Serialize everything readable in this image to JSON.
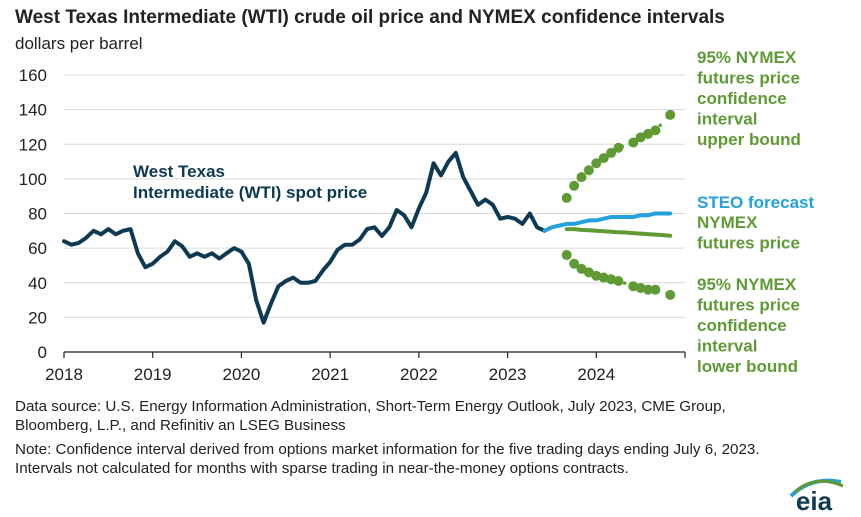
{
  "title": "West Texas Intermediate (WTI) crude oil price and NYMEX confidence intervals",
  "subtitle": "dollars per barrel",
  "source": "Data source: U.S. Energy Information Administration, Short-Term Energy Outlook, July 2023, CME Group, Bloomberg, L.P., and Refinitiv an LSEG Business",
  "note": "Note: Confidence interval derived from options market information for the five trading days ending July 6, 2023. Intervals not calculated for months with sparse trading in near-the-money options contracts.",
  "logo": "eia",
  "chart_data": {
    "type": "line",
    "ylim": [
      0,
      160
    ],
    "yticks": [
      0,
      20,
      40,
      60,
      80,
      100,
      120,
      140,
      160
    ],
    "xlim": [
      2018,
      2025
    ],
    "xticks": [
      "2018",
      "2019",
      "2020",
      "2021",
      "2022",
      "2023",
      "2024"
    ],
    "colors": {
      "spot": "#0d3a52",
      "steo": "#22a1dc",
      "futures": "#5f9a35",
      "bound": "#5f9a35"
    },
    "annotations": {
      "spot": [
        "West Texas",
        "Intermediate (WTI) spot price"
      ],
      "upper": [
        "95% NYMEX",
        "futures price",
        "confidence",
        "interval",
        "upper bound"
      ],
      "steo": [
        "STEO forecast"
      ],
      "futures": [
        "NYMEX",
        "futures price"
      ],
      "lower": [
        "95% NYMEX",
        "futures price",
        "confidence",
        "interval",
        "lower bound"
      ]
    },
    "series": [
      {
        "key": "spot",
        "start": "2018-01",
        "values": [
          64,
          62,
          63,
          66,
          70,
          68,
          71,
          68,
          70,
          71,
          57,
          49,
          51,
          55,
          58,
          64,
          61,
          55,
          57,
          55,
          57,
          54,
          57,
          60,
          58,
          51,
          30,
          17,
          28,
          38,
          41,
          43,
          40,
          40,
          41,
          47,
          52,
          59,
          62,
          62,
          65,
          71,
          72,
          67,
          72,
          82,
          79,
          72,
          83,
          92,
          109,
          102,
          110,
          115,
          101,
          93,
          85,
          88,
          85,
          77,
          78,
          77,
          74,
          80,
          72,
          70
        ]
      },
      {
        "key": "steo",
        "start": "2023-06",
        "values": [
          70,
          72,
          73,
          74,
          74,
          75,
          76,
          76,
          77,
          78,
          78,
          78,
          78,
          79,
          79,
          80,
          80,
          80
        ]
      },
      {
        "key": "futures",
        "start": "2023-09",
        "values": [
          71,
          71,
          70.5,
          70.3,
          70,
          69.8,
          69.5,
          69.2,
          69,
          68.7,
          68.4,
          68.1,
          67.8,
          67.5,
          67.2
        ]
      },
      {
        "key": "upper",
        "start": "2023-09",
        "values": [
          89,
          96,
          101,
          105,
          109,
          112,
          115,
          118,
          null,
          121,
          124,
          126,
          128,
          null,
          137
        ]
      },
      {
        "key": "lower",
        "start": "2023-09",
        "values": [
          56,
          51,
          48,
          46,
          44,
          43,
          42,
          41,
          null,
          38,
          37,
          36,
          36,
          null,
          33
        ]
      }
    ]
  }
}
